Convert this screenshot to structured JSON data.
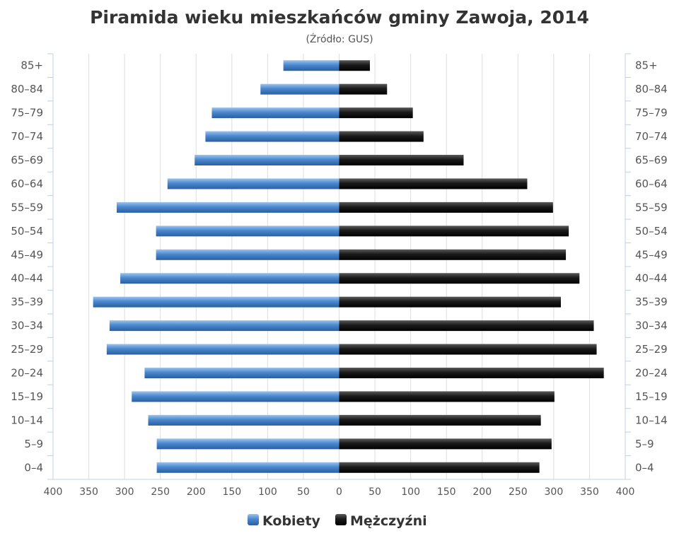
{
  "chart_data": {
    "type": "bar",
    "orientation": "horizontal",
    "subtype": "population-pyramid",
    "title": "Piramida wieku mieszkańców gminy Zawoja, 2014",
    "subtitle": "(Źródło: GUS)",
    "categories": [
      "85+",
      "80–84",
      "75–79",
      "70–74",
      "65–69",
      "60–64",
      "55–59",
      "50–54",
      "45–49",
      "40–44",
      "35–39",
      "30–34",
      "25–29",
      "20–24",
      "15–19",
      "10–14",
      "5–9",
      "0–4"
    ],
    "series": [
      {
        "name": "Kobiety",
        "side": "left",
        "color": "#3d7cc4",
        "values": [
          78,
          110,
          178,
          187,
          202,
          240,
          311,
          256,
          256,
          306,
          344,
          321,
          325,
          272,
          290,
          267,
          255,
          255
        ]
      },
      {
        "name": "Mężczyźni",
        "side": "right",
        "color": "#111111",
        "values": [
          43,
          67,
          103,
          118,
          174,
          263,
          299,
          321,
          317,
          336,
          310,
          356,
          360,
          370,
          301,
          282,
          297,
          280
        ]
      }
    ],
    "xlim": [
      -400,
      400
    ],
    "xticks": [
      "400",
      "350",
      "300",
      "250",
      "200",
      "150",
      "100",
      "50",
      "0",
      "50",
      "100",
      "150",
      "200",
      "250",
      "300",
      "350",
      "400"
    ],
    "grid": true,
    "legend_position": "bottom"
  }
}
